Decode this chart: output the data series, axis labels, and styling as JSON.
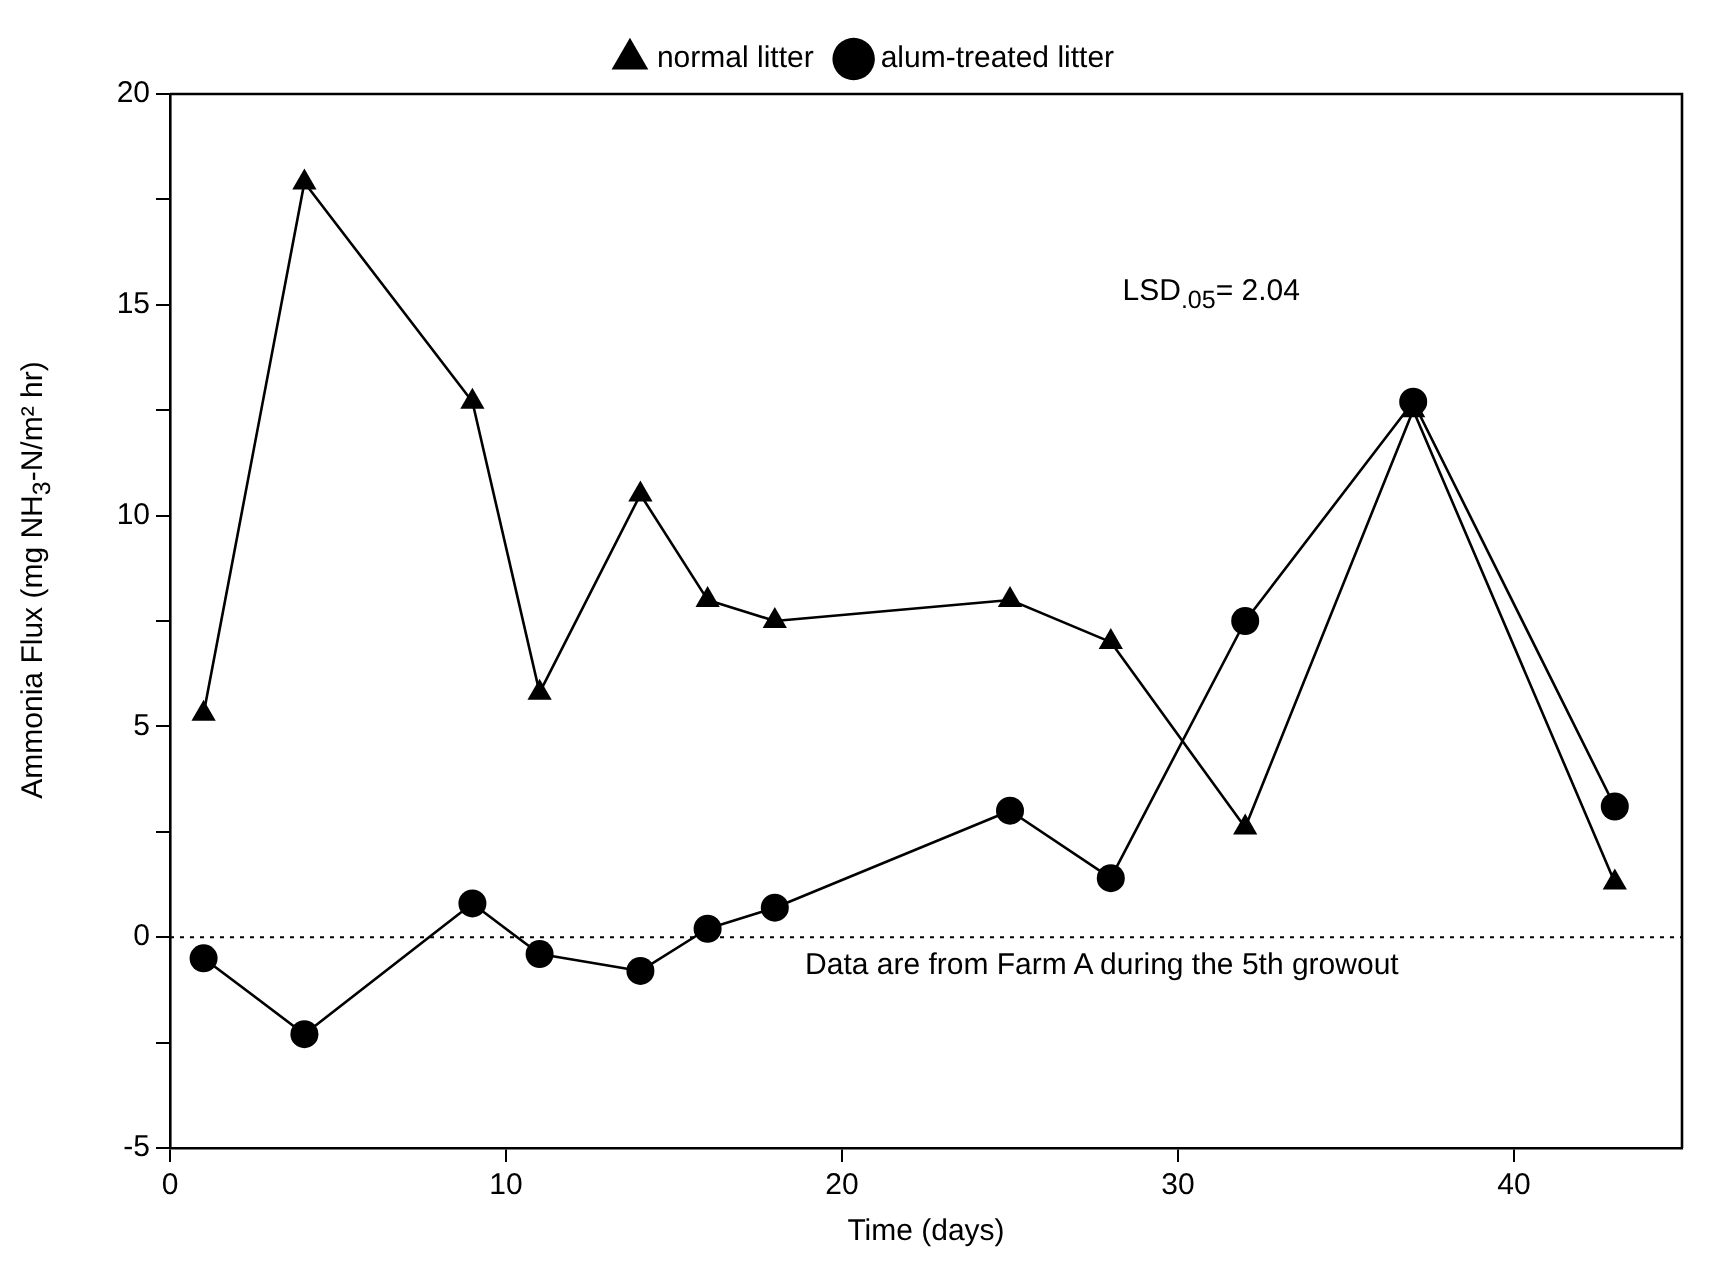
{
  "chart_data": {
    "type": "line",
    "xlabel": "Time (days)",
    "ylabel": "Ammonia Flux (mg NH$_{3}$-N/m² hr)",
    "x": [
      1,
      4,
      9,
      11,
      14,
      16,
      18,
      25,
      28,
      32,
      37,
      43
    ],
    "series": [
      {
        "name": "normal litter",
        "color": "#000000",
        "marker": "triangle",
        "values": [
          5.3,
          17.9,
          12.7,
          5.8,
          10.5,
          8,
          7.5,
          8,
          7,
          2.6,
          12.5,
          1.3
        ]
      },
      {
        "name": "alum-treated litter",
        "color": "#000000",
        "marker": "circle",
        "values": [
          -0.5,
          -2.3,
          0.8,
          -0.4,
          -0.8,
          0.2,
          0.7,
          3,
          1.4,
          7.5,
          12.7,
          3.1
        ]
      }
    ],
    "xlim": [
      0,
      45
    ],
    "xticks": [
      0,
      10,
      20,
      30,
      40
    ],
    "ylim": [
      -5,
      20
    ],
    "yticks": [
      -5,
      {
        "value": -2.5,
        "label": null
      },
      0,
      {
        "value": 2.5,
        "label": null
      },
      5,
      {
        "value": 7.5,
        "label": null
      },
      10,
      {
        "value": 12.5,
        "label": null
      },
      15,
      {
        "value": 17.5,
        "label": null
      },
      20
    ],
    "ref_lines": [
      {
        "axis": "y",
        "value": 0,
        "line_style": "dotted",
        "color": "#000000"
      }
    ],
    "annotations": [
      "LSD$_{.05}$= 2.04",
      "Data are from Farm A during the 5th growout"
    ],
    "grid": false,
    "legend": "top",
    "line_style": "solid"
  }
}
